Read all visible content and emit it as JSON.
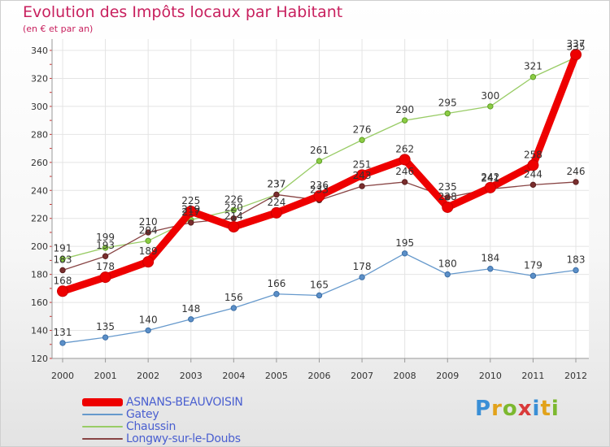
{
  "chart_data": {
    "type": "line",
    "title": "Evolution des Impôts locaux par Habitant",
    "subtitle": "(en € et par an)",
    "xlabel": "",
    "ylabel": "",
    "x": [
      "2000",
      "2001",
      "2002",
      "2003",
      "2004",
      "2005",
      "2006",
      "2007",
      "2008",
      "2009",
      "2010",
      "2011",
      "2012"
    ],
    "ylim": [
      120,
      340
    ],
    "yticks": [
      120,
      140,
      160,
      180,
      200,
      220,
      240,
      260,
      280,
      300,
      320,
      340
    ],
    "grid": true,
    "legend_position": "bottom-left",
    "series": [
      {
        "name": "ASNANS-BEAUVOISIN",
        "color": "#ee0000",
        "values": [
          168,
          178,
          189,
          225,
          214,
          224,
          236,
          251,
          262,
          228,
          242,
          258,
          337
        ]
      },
      {
        "name": "Gatey",
        "color": "#6699cc",
        "values": [
          131,
          135,
          140,
          148,
          156,
          166,
          165,
          178,
          195,
          180,
          184,
          179,
          183
        ]
      },
      {
        "name": "Chaussin",
        "color": "#99cc66",
        "values": [
          191,
          199,
          204,
          219,
          226,
          237,
          261,
          276,
          290,
          295,
          300,
          321,
          335
        ]
      },
      {
        "name": "Longwy-sur-le-Doubs",
        "color": "#884444",
        "values": [
          183,
          193,
          210,
          217,
          220,
          237,
          233,
          243,
          246,
          235,
          241,
          244,
          246
        ]
      }
    ]
  },
  "brand": {
    "letters": [
      "P",
      "r",
      "o",
      "x",
      "i",
      "t",
      "i"
    ]
  }
}
